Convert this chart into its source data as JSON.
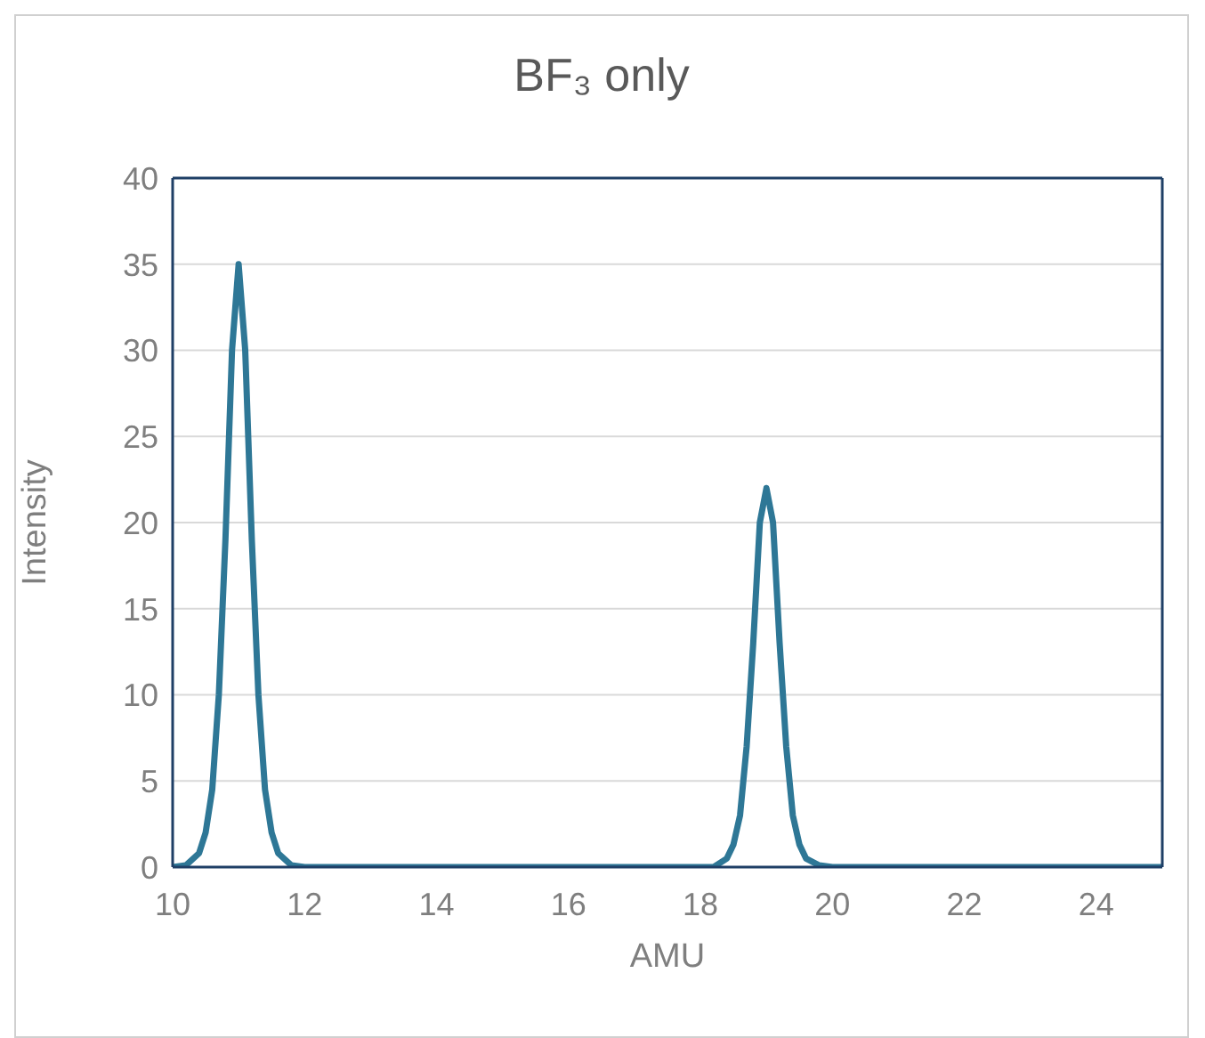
{
  "chart_data": {
    "type": "line",
    "title": "BF₃ only",
    "xlabel": "AMU",
    "ylabel": "Intensity",
    "x": [
      10,
      10.2,
      10.4,
      10.5,
      10.6,
      10.7,
      10.8,
      10.9,
      10.95,
      11,
      11.05,
      11.1,
      11.2,
      11.3,
      11.4,
      11.5,
      11.6,
      11.8,
      12,
      18.2,
      18.4,
      18.5,
      18.6,
      18.7,
      18.8,
      18.9,
      18.95,
      19,
      19.05,
      19.1,
      19.2,
      19.3,
      19.4,
      19.5,
      19.6,
      19.8,
      20,
      25
    ],
    "series": [
      {
        "color": "#2e7796",
        "values": [
          0,
          0.1,
          0.8,
          2,
          4.5,
          10,
          19,
          30,
          32.5,
          35,
          32.5,
          30,
          19,
          10,
          4.5,
          2,
          0.8,
          0.1,
          0,
          0,
          0.5,
          1.3,
          3,
          7,
          13,
          20,
          21,
          22,
          21,
          20,
          13,
          7,
          3,
          1.3,
          0.5,
          0.1,
          0,
          0
        ]
      }
    ],
    "xlim": [
      10,
      25
    ],
    "xticks": [
      10,
      12,
      14,
      16,
      18,
      20,
      22,
      24
    ],
    "ylim": [
      0,
      40
    ],
    "yticks": [
      0,
      5,
      10,
      15,
      20,
      25,
      30,
      35,
      40
    ],
    "grid": "y",
    "marker": "none",
    "line_style": "solid"
  }
}
